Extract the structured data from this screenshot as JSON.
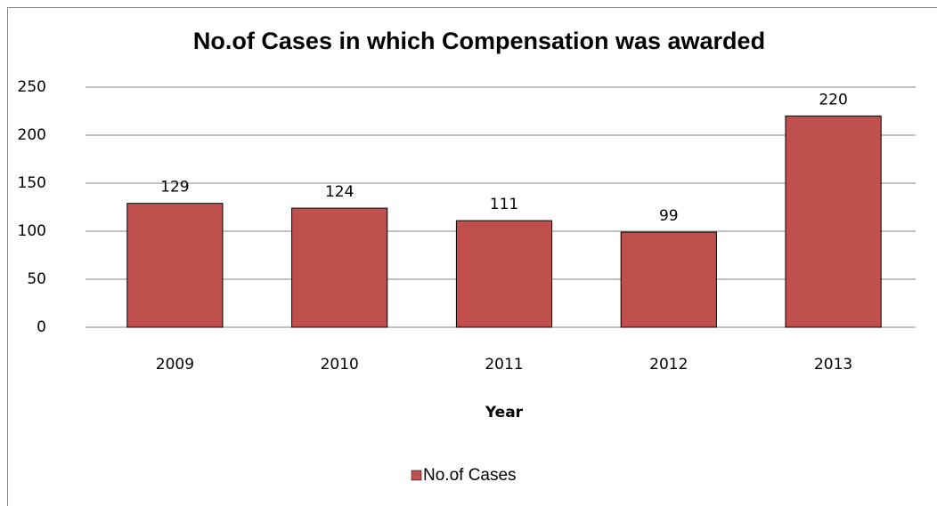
{
  "chart_data": {
    "type": "bar",
    "title": "No.of Cases in which Compensation was awarded",
    "categories": [
      "2009",
      "2010",
      "2011",
      "2012",
      "2013"
    ],
    "series": [
      {
        "name": "No.of Cases",
        "color": "#c0504d",
        "values": [
          129,
          124,
          111,
          99,
          220
        ]
      }
    ],
    "x_label": "Year",
    "ylim": [
      0,
      250
    ],
    "yticks": [
      0,
      50,
      100,
      150,
      200,
      250
    ],
    "grid": true,
    "legend": "bottom"
  }
}
